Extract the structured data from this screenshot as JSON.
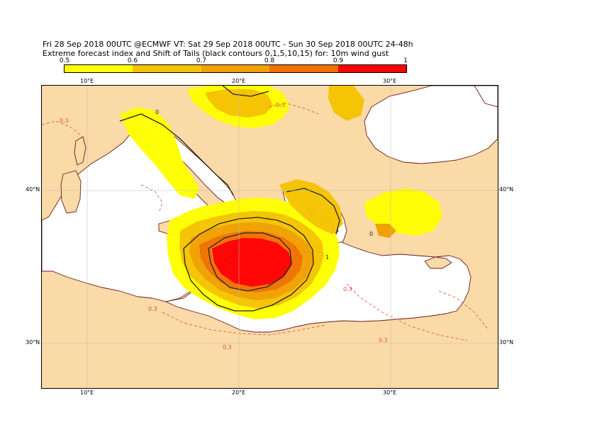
{
  "title_line1": "Fri 28 Sep 2018 00UTC @ECMWF VT: Sat 29 Sep 2018 00UTC - Sun 30 Sep 2018 00UTC  24-48h",
  "title_line2": "Extreme forecast index and Shift of Tails (black contours 0,1,5,10,15) for: 10m wind gust",
  "legend": {
    "labels": [
      "0.5",
      "0.6",
      "0.7",
      "0.8",
      "0.9",
      "1"
    ],
    "colors": [
      "#ffff00",
      "#f5c400",
      "#f0a000",
      "#f07000",
      "#ff0000"
    ]
  },
  "axes": {
    "lon_labels": [
      "10°E",
      "20°E",
      "30°E"
    ],
    "lat_labels": [
      "40°N",
      "30°N"
    ]
  },
  "contour_labels": [
    "0.3",
    "0.3",
    "0.3",
    "0.3",
    "0.3",
    "0.3",
    "0",
    "0",
    "1"
  ],
  "colors": {
    "land": "#fadaa6",
    "sea": "#ffffff",
    "coast": "#6b1a1a",
    "sot_contour": "#222222",
    "efi_03_contour": "#e05050"
  }
}
